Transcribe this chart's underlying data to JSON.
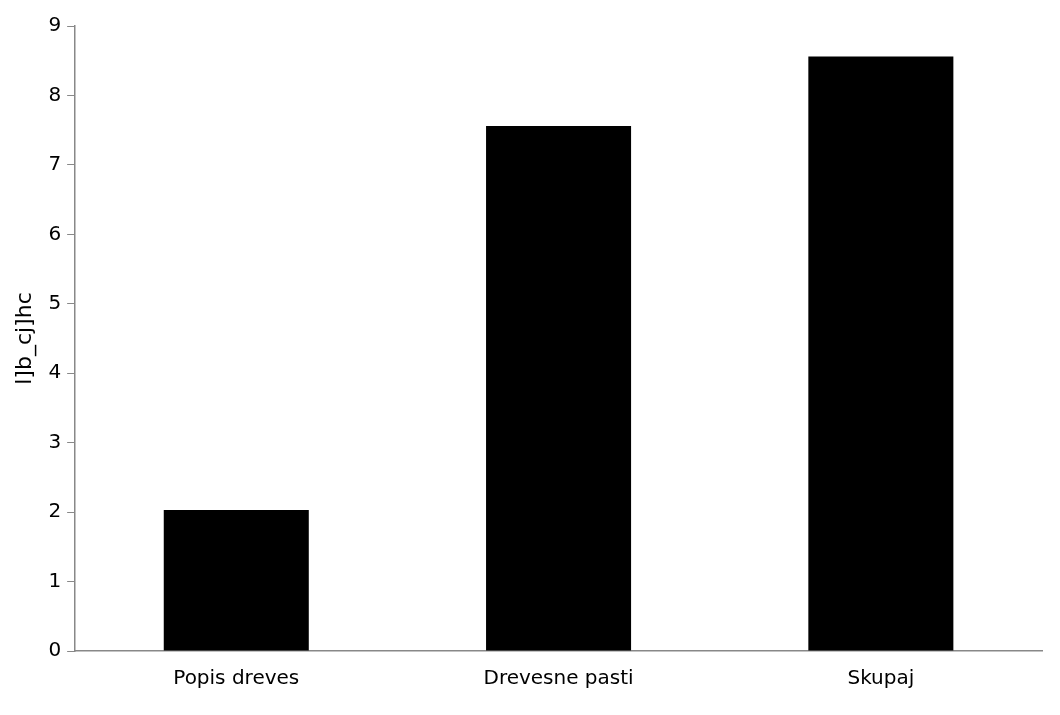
{
  "chart_data": {
    "type": "bar",
    "ylabel": "l]b_cj]hc",
    "categories": [
      "Popis dreves",
      "Drevesne pasti",
      "Skupaj"
    ],
    "values": [
      2.03,
      7.56,
      8.56
    ],
    "color": "#000000",
    "ylim": [
      0,
      9
    ],
    "yticks": [
      0,
      1,
      2,
      3,
      4,
      5,
      6,
      7,
      8,
      9
    ],
    "grid": false,
    "legend": false
  }
}
